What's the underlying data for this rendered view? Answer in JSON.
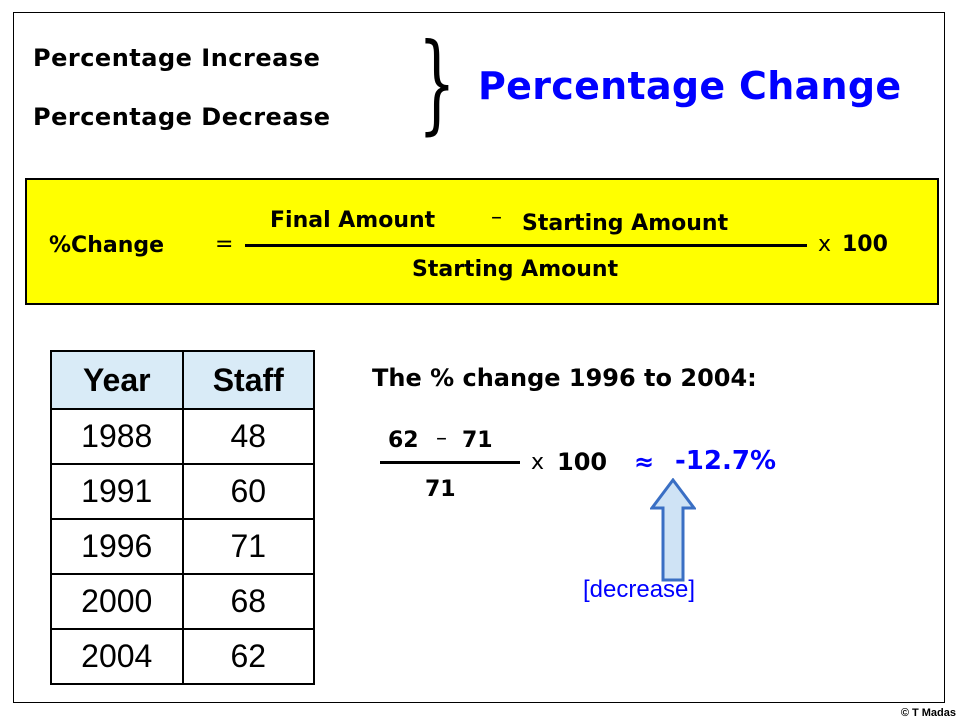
{
  "header": {
    "line1": "Percentage Increase",
    "line2": "Percentage Decrease",
    "brace": "}",
    "title": "Percentage Change"
  },
  "formula": {
    "lhs": "%Change",
    "equals": "=",
    "numerator_left": "Final Amount",
    "minus": "–",
    "numerator_right": "Starting Amount",
    "denominator": "Starting Amount",
    "times": "x",
    "multiplier": "100"
  },
  "table": {
    "headers": [
      "Year",
      "Staff"
    ],
    "rows": [
      [
        "1988",
        "48"
      ],
      [
        "1991",
        "60"
      ],
      [
        "1996",
        "71"
      ],
      [
        "2000",
        "68"
      ],
      [
        "2004",
        "62"
      ]
    ]
  },
  "example": {
    "heading": "The % change 1996 to 2004:",
    "numerator_left": "62",
    "minus": "–",
    "numerator_right": "71",
    "denominator": "71",
    "times": "x",
    "multiplier": "100",
    "approx": "≈",
    "result": "-12.7%",
    "note": "[decrease]"
  },
  "colors": {
    "title_blue": "#0000ff",
    "formula_background": "#ffff00",
    "table_header_background": "#d9ebf7",
    "arrow_fill": "#cfe3f5",
    "arrow_stroke": "#3a6fc4"
  },
  "footer": {
    "copyright": "© T Madas"
  }
}
